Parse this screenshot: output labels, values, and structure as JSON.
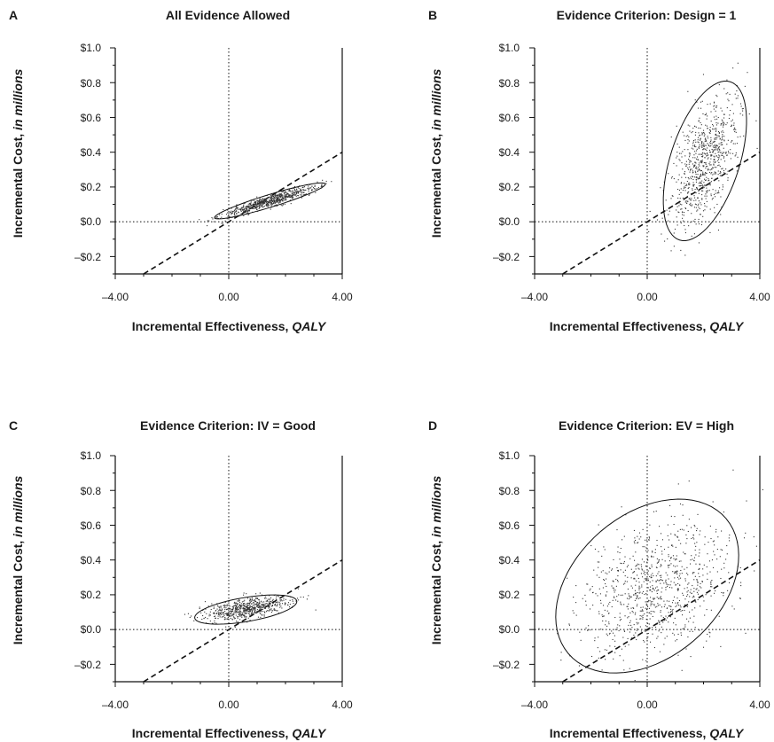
{
  "figure": {
    "panels": [
      {
        "letter": "A",
        "title": "All Evidence Allowed"
      },
      {
        "letter": "B",
        "title": "Evidence Criterion: Design = 1"
      },
      {
        "letter": "C",
        "title": "Evidence Criterion: IV = Good"
      },
      {
        "letter": "D",
        "title": "Evidence Criterion: EV = High"
      }
    ]
  },
  "chart_data": [
    {
      "type": "scatter",
      "panel": "A",
      "title": "All Evidence Allowed",
      "xlabel": "Incremental Effectiveness,",
      "xlabel_em": "QALY",
      "ylabel": "Incremental Cost,",
      "ylabel_em": "in millions",
      "xlim": [
        -4,
        4
      ],
      "ylim": [
        -0.3,
        1.0
      ],
      "x_ticks": [
        -4,
        0,
        4
      ],
      "x_tick_labels": [
        "–4.00",
        "0.00",
        "4.00"
      ],
      "y_ticks": [
        1.0,
        0.8,
        0.6,
        0.4,
        0.2,
        0.0,
        -0.2
      ],
      "y_tick_labels": [
        "$1.0",
        "$0.8",
        "$0.6",
        "$0.4",
        "$0.2",
        "$0.0",
        "–$0.2"
      ],
      "reference_lines": {
        "x": 0,
        "y": 0,
        "threshold_slope": 0.1
      },
      "cloud": {
        "x_mean": 1.45,
        "y_mean": 0.12,
        "sx": 0.85,
        "sy": 0.045,
        "rho": 0.93,
        "n": 700
      },
      "ellipse": {
        "cx": 1.45,
        "cy": 0.12,
        "k": 2.3
      },
      "colors": {
        "points": "#333333",
        "lines": "#111111"
      }
    },
    {
      "type": "scatter",
      "panel": "B",
      "title": "Evidence Criterion: Design = 1",
      "xlabel": "Incremental Effectiveness,",
      "xlabel_em": "QALY",
      "ylabel": "Incremental Cost,",
      "ylabel_em": "in millions",
      "xlim": [
        -4,
        4
      ],
      "ylim": [
        -0.3,
        1.0
      ],
      "x_ticks": [
        -4,
        0,
        4
      ],
      "x_tick_labels": [
        "–4.00",
        "0.00",
        "4.00"
      ],
      "y_ticks": [
        1.0,
        0.8,
        0.6,
        0.4,
        0.2,
        0.0,
        -0.2
      ],
      "y_tick_labels": [
        "$1.0",
        "$0.8",
        "$0.6",
        "$0.4",
        "$0.2",
        "$0.0",
        "–$0.2"
      ],
      "reference_lines": {
        "x": 0,
        "y": 0,
        "threshold_slope": 0.1
      },
      "cloud": {
        "x_mean": 2.05,
        "y_mean": 0.35,
        "sx": 0.58,
        "sy": 0.18,
        "rho": 0.5,
        "n": 800
      },
      "ellipse": {
        "cx": 2.05,
        "cy": 0.35,
        "k": 2.55
      },
      "colors": {
        "points": "#333333",
        "lines": "#111111"
      }
    },
    {
      "type": "scatter",
      "panel": "C",
      "title": "Evidence Criterion: IV = Good",
      "xlabel": "Incremental Effectiveness,",
      "xlabel_em": "QALY",
      "ylabel": "Incremental Cost,",
      "ylabel_em": "in millions",
      "xlim": [
        -4,
        4
      ],
      "ylim": [
        -0.3,
        1.0
      ],
      "x_ticks": [
        -4,
        0,
        4
      ],
      "x_tick_labels": [
        "–4.00",
        "0.00",
        "4.00"
      ],
      "y_ticks": [
        1.0,
        0.8,
        0.6,
        0.4,
        0.2,
        0.0,
        -0.2
      ],
      "y_tick_labels": [
        "$1.0",
        "$0.8",
        "$0.6",
        "$0.4",
        "$0.2",
        "$0.0",
        "–$0.2"
      ],
      "reference_lines": {
        "x": 0,
        "y": 0,
        "threshold_slope": 0.1
      },
      "cloud": {
        "x_mean": 0.65,
        "y_mean": 0.12,
        "sx": 0.75,
        "sy": 0.035,
        "rho": 0.55,
        "n": 650
      },
      "ellipse": {
        "cx": 0.6,
        "cy": 0.115,
        "k": 2.4
      },
      "colors": {
        "points": "#333333",
        "lines": "#111111"
      }
    },
    {
      "type": "scatter",
      "panel": "D",
      "title": "Evidence Criterion: EV = High",
      "xlabel": "Incremental Effectiveness,",
      "xlabel_em": "QALY",
      "ylabel": "Incremental Cost,",
      "ylabel_em": "in millions",
      "xlim": [
        -4,
        4
      ],
      "ylim": [
        -0.3,
        1.0
      ],
      "x_ticks": [
        -4,
        0,
        4
      ],
      "x_tick_labels": [
        "–4.00",
        "0.00",
        "4.00"
      ],
      "y_ticks": [
        1.0,
        0.8,
        0.6,
        0.4,
        0.2,
        0.0,
        -0.2
      ],
      "y_tick_labels": [
        "$1.0",
        "$0.8",
        "$0.6",
        "$0.4",
        "$0.2",
        "$0.0",
        "–$0.2"
      ],
      "reference_lines": {
        "x": 0,
        "y": 0,
        "threshold_slope": 0.1
      },
      "cloud": {
        "x_mean": 0.3,
        "y_mean": 0.25,
        "sx": 1.3,
        "sy": 0.2,
        "rho": 0.35,
        "n": 900
      },
      "ellipse": {
        "cx": 0.0,
        "cy": 0.25,
        "k": 2.5
      },
      "colors": {
        "points": "#333333",
        "lines": "#111111"
      }
    }
  ]
}
